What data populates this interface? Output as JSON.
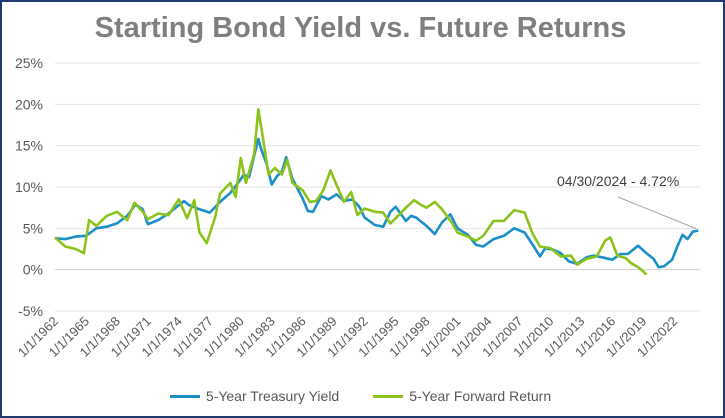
{
  "chart_data": {
    "type": "line",
    "title": "Starting Bond Yield vs. Future Returns",
    "xlabel": "",
    "ylabel": "",
    "ylim": [
      -5,
      25
    ],
    "y_tick_labels": [
      "-5%",
      "0%",
      "5%",
      "10%",
      "15%",
      "20%",
      "25%"
    ],
    "y_tick_values": [
      -5,
      0,
      5,
      10,
      15,
      20,
      25
    ],
    "x_tick_labels": [
      "1/1/1962",
      "1/1/1965",
      "1/1/1968",
      "1/1/1971",
      "1/1/1974",
      "1/1/1977",
      "1/1/1980",
      "1/1/1983",
      "1/1/1986",
      "1/1/1989",
      "1/1/1992",
      "1/1/1995",
      "1/1/1998",
      "1/1/2001",
      "1/1/2004",
      "1/1/2007",
      "1/1/2010",
      "1/1/2013",
      "1/1/2016",
      "1/1/2019",
      "1/1/2022"
    ],
    "x_tick_years": [
      1962,
      1965,
      1968,
      1971,
      1974,
      1977,
      1980,
      1983,
      1986,
      1989,
      1992,
      1995,
      1998,
      2001,
      2004,
      2007,
      2010,
      2013,
      2016,
      2019,
      2022
    ],
    "xlim": [
      1962,
      2024.5
    ],
    "grid": "horizontal",
    "legend_position": "bottom",
    "annotation": {
      "text": "04/30/2024 - 4.72%",
      "x": 2024.33,
      "y": 4.72
    },
    "series": [
      {
        "name": "5-Year Treasury Yield",
        "color": "#1a8fc9",
        "points": [
          [
            1962,
            3.8
          ],
          [
            1963,
            3.7
          ],
          [
            1964,
            4.0
          ],
          [
            1965,
            4.1
          ],
          [
            1966,
            5.0
          ],
          [
            1967,
            5.2
          ],
          [
            1968,
            5.6
          ],
          [
            1969,
            6.5
          ],
          [
            1969.8,
            7.9
          ],
          [
            1970.5,
            7.3
          ],
          [
            1971,
            5.5
          ],
          [
            1972,
            6.0
          ],
          [
            1973,
            6.8
          ],
          [
            1974,
            7.8
          ],
          [
            1974.5,
            8.3
          ],
          [
            1975,
            7.8
          ],
          [
            1976,
            7.3
          ],
          [
            1977,
            6.9
          ],
          [
            1978,
            8.2
          ],
          [
            1979,
            9.3
          ],
          [
            1979.8,
            10.6
          ],
          [
            1980.3,
            11.5
          ],
          [
            1980.8,
            11.2
          ],
          [
            1981.3,
            13.8
          ],
          [
            1981.7,
            15.8
          ],
          [
            1982,
            14.5
          ],
          [
            1982.5,
            12.8
          ],
          [
            1983,
            10.3
          ],
          [
            1983.5,
            11.3
          ],
          [
            1984,
            11.9
          ],
          [
            1984.4,
            13.6
          ],
          [
            1985,
            11.0
          ],
          [
            1986,
            8.6
          ],
          [
            1986.5,
            7.1
          ],
          [
            1987,
            7.0
          ],
          [
            1987.8,
            8.9
          ],
          [
            1988.5,
            8.5
          ],
          [
            1989.3,
            9.1
          ],
          [
            1990,
            8.3
          ],
          [
            1990.8,
            8.5
          ],
          [
            1991.5,
            7.6
          ],
          [
            1992,
            6.3
          ],
          [
            1993,
            5.4
          ],
          [
            1993.8,
            5.2
          ],
          [
            1994.5,
            7.0
          ],
          [
            1995,
            7.6
          ],
          [
            1996,
            5.9
          ],
          [
            1996.5,
            6.5
          ],
          [
            1997,
            6.3
          ],
          [
            1998,
            5.3
          ],
          [
            1998.8,
            4.3
          ],
          [
            1999.5,
            5.7
          ],
          [
            2000.3,
            6.7
          ],
          [
            2001,
            5.0
          ],
          [
            2002,
            4.2
          ],
          [
            2002.8,
            3.0
          ],
          [
            2003.5,
            2.8
          ],
          [
            2004.5,
            3.7
          ],
          [
            2005.5,
            4.1
          ],
          [
            2006.5,
            5.0
          ],
          [
            2007.5,
            4.5
          ],
          [
            2008.3,
            3.0
          ],
          [
            2009,
            1.6
          ],
          [
            2009.5,
            2.6
          ],
          [
            2010.3,
            2.4
          ],
          [
            2011,
            2.0
          ],
          [
            2011.8,
            1.0
          ],
          [
            2012.6,
            0.7
          ],
          [
            2013.5,
            1.5
          ],
          [
            2014.2,
            1.7
          ],
          [
            2015,
            1.5
          ],
          [
            2016,
            1.2
          ],
          [
            2016.8,
            1.9
          ],
          [
            2017.5,
            1.9
          ],
          [
            2018.5,
            2.9
          ],
          [
            2019.3,
            2.0
          ],
          [
            2020,
            1.3
          ],
          [
            2020.5,
            0.3
          ],
          [
            2021,
            0.4
          ],
          [
            2021.8,
            1.2
          ],
          [
            2022.3,
            2.8
          ],
          [
            2022.8,
            4.2
          ],
          [
            2023.3,
            3.7
          ],
          [
            2023.8,
            4.6
          ],
          [
            2024.33,
            4.72
          ]
        ]
      },
      {
        "name": "5-Year Forward Return",
        "color": "#8cc21c",
        "points": [
          [
            1962,
            3.9
          ],
          [
            1963,
            2.8
          ],
          [
            1964,
            2.5
          ],
          [
            1964.8,
            2.0
          ],
          [
            1965.3,
            6.0
          ],
          [
            1966,
            5.3
          ],
          [
            1967,
            6.5
          ],
          [
            1968,
            7.0
          ],
          [
            1969,
            6.0
          ],
          [
            1969.7,
            8.1
          ],
          [
            1970.5,
            7.0
          ],
          [
            1971,
            6.1
          ],
          [
            1972,
            6.8
          ],
          [
            1973,
            6.6
          ],
          [
            1974,
            8.5
          ],
          [
            1974.8,
            6.2
          ],
          [
            1975.5,
            8.4
          ],
          [
            1976,
            4.5
          ],
          [
            1976.7,
            3.2
          ],
          [
            1977.5,
            6.3
          ],
          [
            1978,
            9.2
          ],
          [
            1979,
            10.5
          ],
          [
            1979.5,
            8.8
          ],
          [
            1980,
            13.5
          ],
          [
            1980.5,
            10.5
          ],
          [
            1981.3,
            14.0
          ],
          [
            1981.7,
            19.4
          ],
          [
            1982.2,
            15.5
          ],
          [
            1982.7,
            11.5
          ],
          [
            1983.3,
            12.3
          ],
          [
            1984,
            11.5
          ],
          [
            1984.5,
            13.3
          ],
          [
            1985,
            10.5
          ],
          [
            1986,
            9.6
          ],
          [
            1986.7,
            8.2
          ],
          [
            1987.3,
            8.3
          ],
          [
            1988,
            9.6
          ],
          [
            1988.7,
            12.0
          ],
          [
            1989.3,
            10.2
          ],
          [
            1990,
            8.2
          ],
          [
            1990.7,
            9.4
          ],
          [
            1991.3,
            6.6
          ],
          [
            1992,
            7.4
          ],
          [
            1993,
            7.0
          ],
          [
            1993.8,
            6.9
          ],
          [
            1994.5,
            5.6
          ],
          [
            1995,
            6.2
          ],
          [
            1996,
            7.5
          ],
          [
            1996.8,
            8.4
          ],
          [
            1997.5,
            7.8
          ],
          [
            1998,
            7.5
          ],
          [
            1998.8,
            8.2
          ],
          [
            1999.5,
            7.3
          ],
          [
            2000.5,
            5.6
          ],
          [
            2001,
            4.5
          ],
          [
            2002,
            4.0
          ],
          [
            2002.8,
            3.5
          ],
          [
            2003.5,
            4.1
          ],
          [
            2004.5,
            5.9
          ],
          [
            2005.5,
            5.9
          ],
          [
            2006.5,
            7.2
          ],
          [
            2007.5,
            6.9
          ],
          [
            2008.3,
            4.3
          ],
          [
            2009,
            2.8
          ],
          [
            2010,
            2.6
          ],
          [
            2011,
            1.6
          ],
          [
            2012,
            1.7
          ],
          [
            2012.6,
            0.6
          ],
          [
            2013.5,
            1.3
          ],
          [
            2014.5,
            1.6
          ],
          [
            2015.3,
            3.5
          ],
          [
            2015.8,
            3.9
          ],
          [
            2016.5,
            1.7
          ],
          [
            2017.3,
            1.4
          ],
          [
            2017.8,
            0.8
          ],
          [
            2018.5,
            0.3
          ],
          [
            2019,
            -0.2
          ],
          [
            2019.3,
            -0.6
          ]
        ]
      }
    ]
  }
}
